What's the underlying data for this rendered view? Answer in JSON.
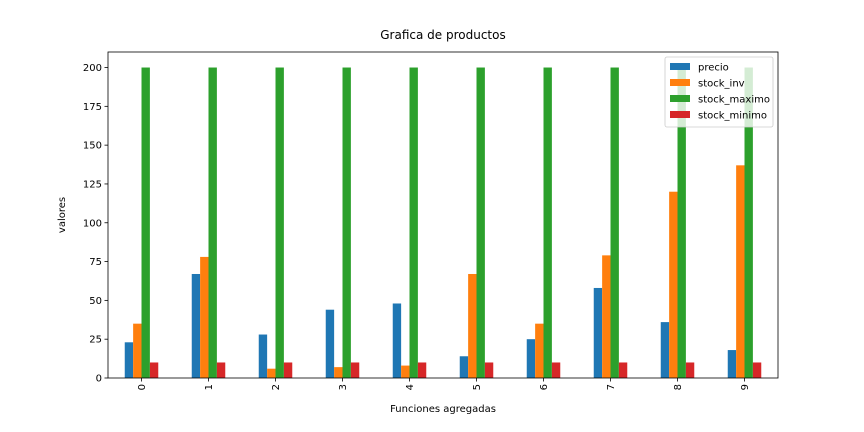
{
  "chart_data": {
    "type": "bar",
    "title": "Grafica de productos",
    "xlabel": "Funciones agregadas",
    "ylabel": "valores",
    "categories": [
      "0",
      "1",
      "2",
      "3",
      "4",
      "5",
      "6",
      "7",
      "8",
      "9"
    ],
    "ylim": [
      0,
      210
    ],
    "yticks": [
      0,
      25,
      50,
      75,
      100,
      125,
      150,
      175,
      200
    ],
    "grid": false,
    "legend_position": "top-right",
    "series": [
      {
        "name": "precio",
        "color": "#1f77b4",
        "values": [
          23,
          67,
          28,
          44,
          48,
          14,
          25,
          58,
          36,
          18
        ]
      },
      {
        "name": "stock_inv",
        "color": "#ff7f0e",
        "values": [
          35,
          78,
          6,
          7,
          8,
          67,
          35,
          79,
          120,
          137
        ]
      },
      {
        "name": "stock_maximo",
        "color": "#2ca02c",
        "values": [
          200,
          200,
          200,
          200,
          200,
          200,
          200,
          200,
          200,
          200
        ]
      },
      {
        "name": "stock_minimo",
        "color": "#d62728",
        "values": [
          10,
          10,
          10,
          10,
          10,
          10,
          10,
          10,
          10,
          10
        ]
      }
    ]
  }
}
